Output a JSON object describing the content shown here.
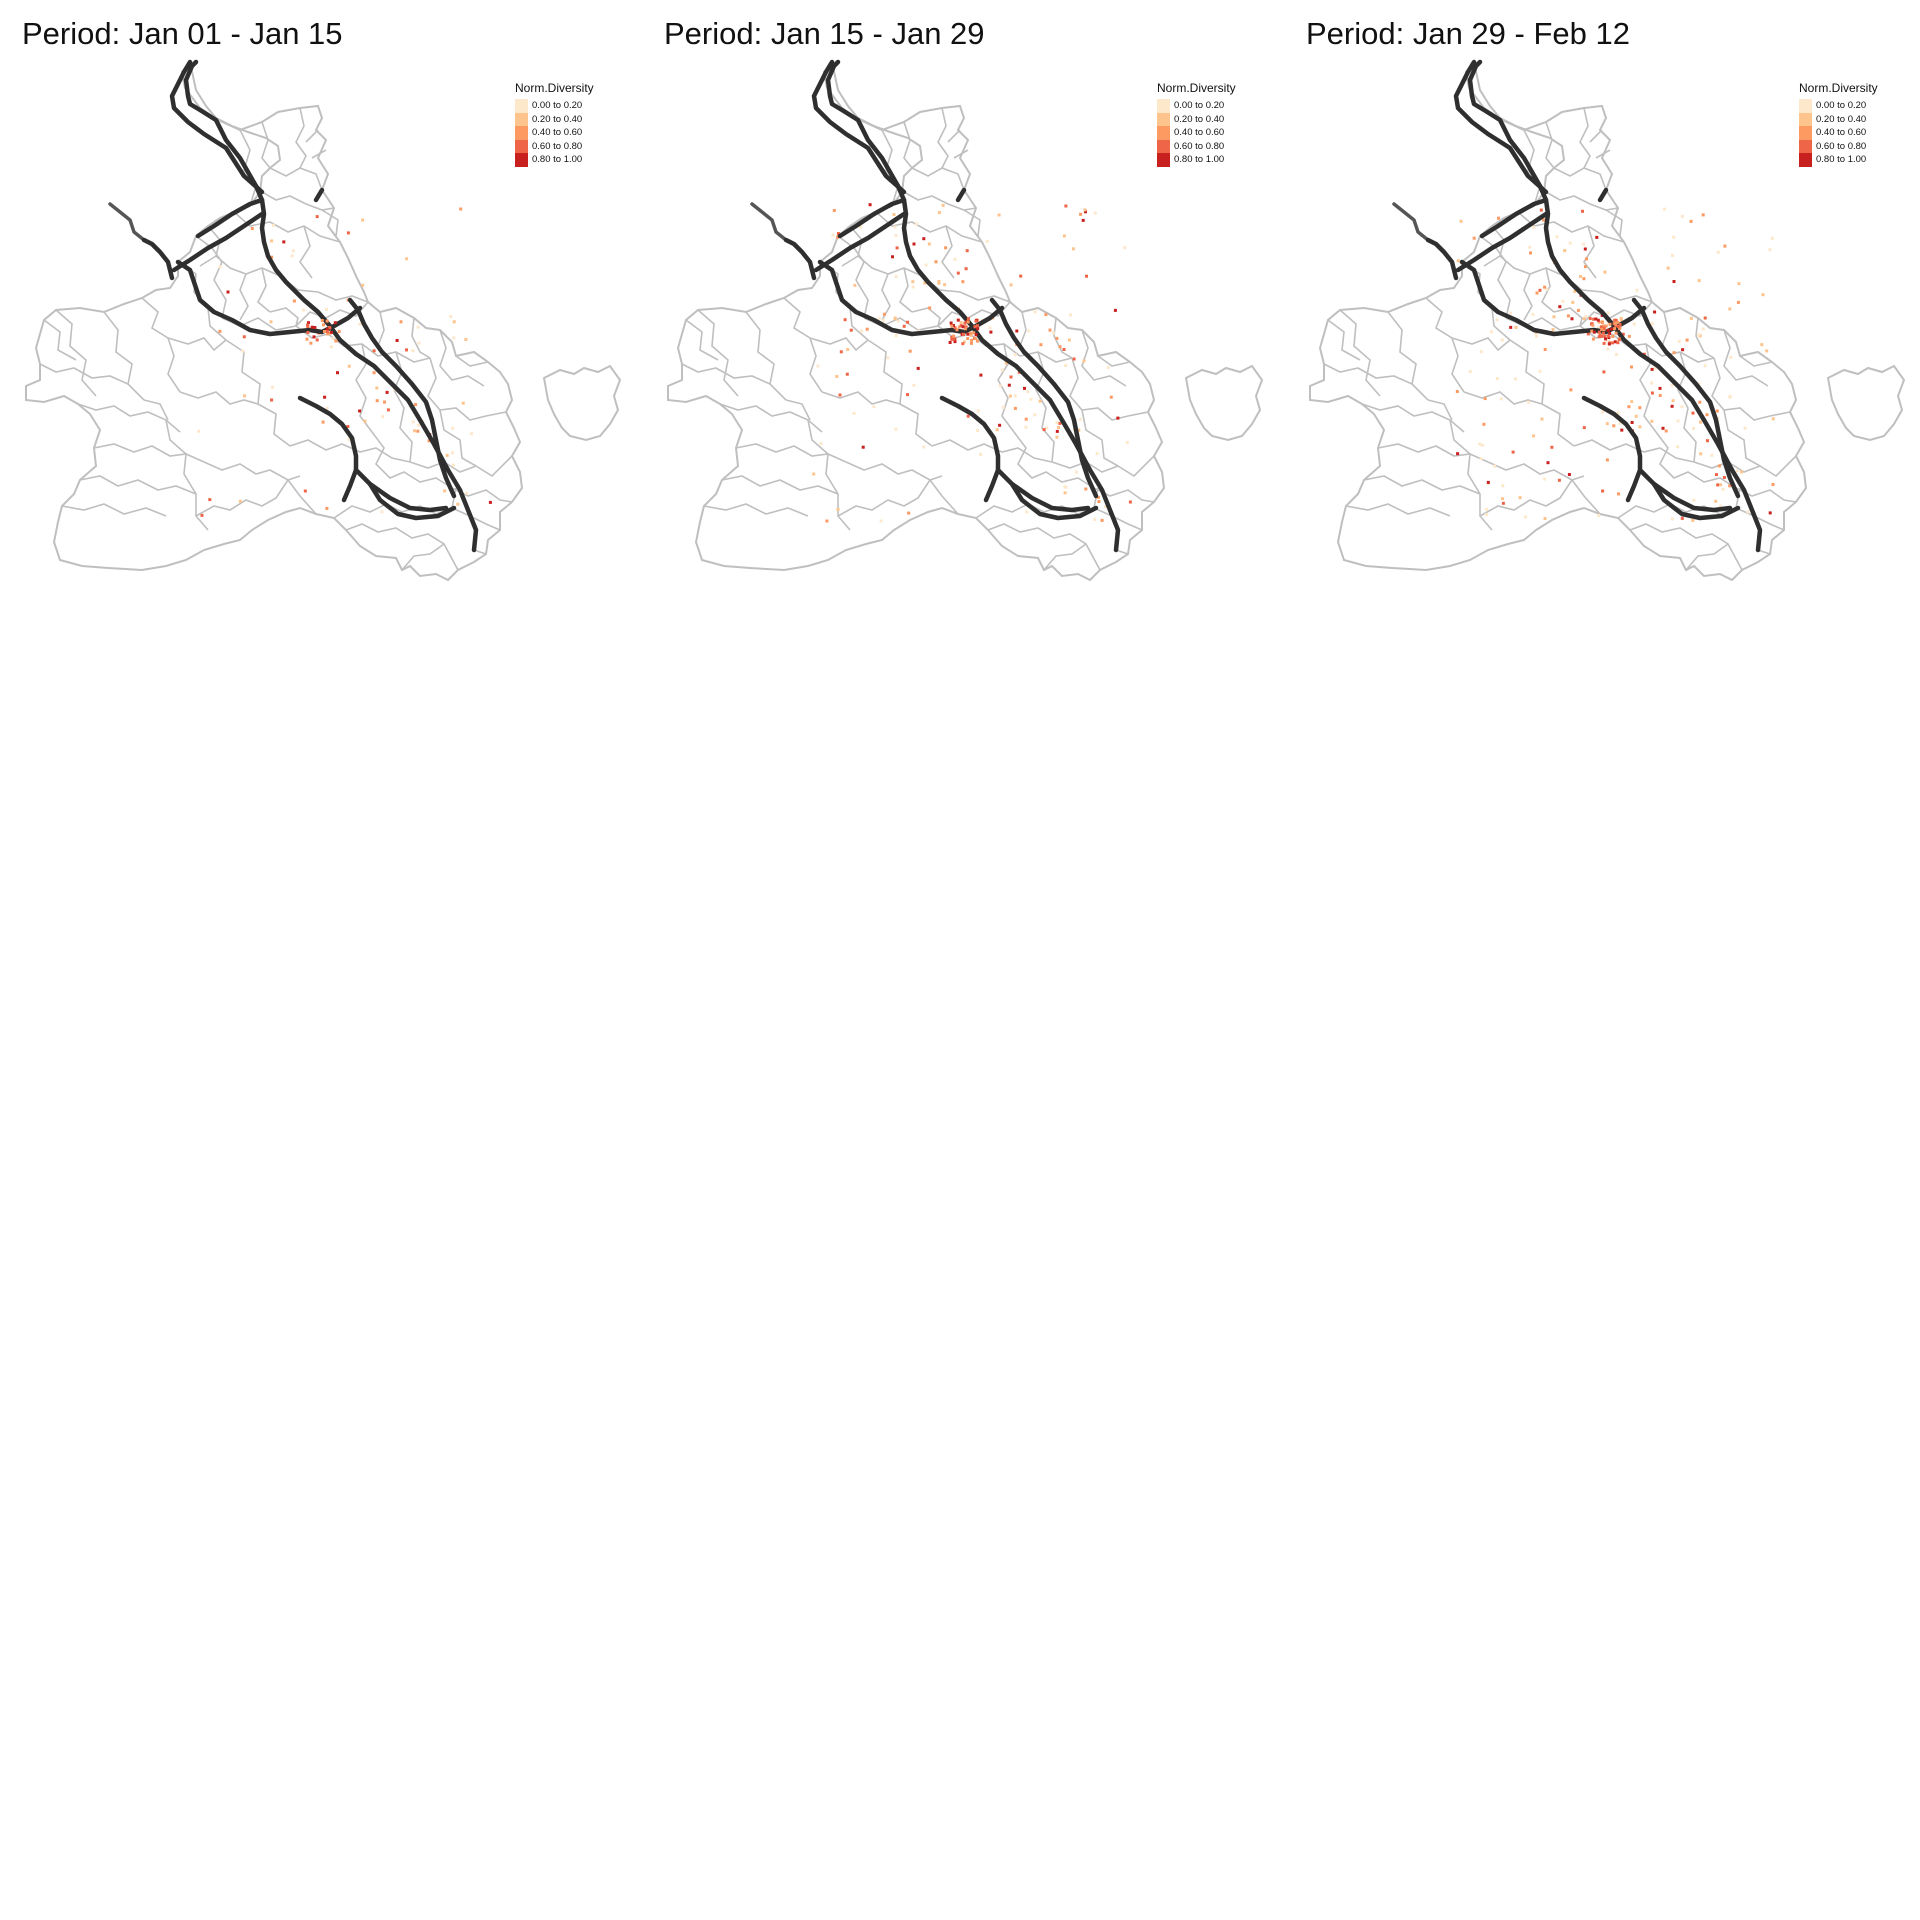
{
  "panels": [
    {
      "title": "Period: Jan 01 - Jan 15",
      "seed": 11,
      "points": 90
    },
    {
      "title": "Period: Jan 15 - Jan 29",
      "seed": 23,
      "points": 170
    },
    {
      "title": "Period: Jan 29 - Feb 12",
      "seed": 37,
      "points": 210
    }
  ],
  "legend": {
    "title": "Norm.Diversity",
    "classes": [
      {
        "label": "0.00 to 0.20",
        "color": "#fee8cc"
      },
      {
        "label": "0.20 to 0.40",
        "color": "#fdc48e"
      },
      {
        "label": "0.40 to 0.60",
        "color": "#fc9a62"
      },
      {
        "label": "0.60 to 0.80",
        "color": "#ef6547"
      },
      {
        "label": "0.80 to 1.00",
        "color": "#c8201f"
      }
    ]
  },
  "colors": {
    "boundary": "#bfbfbf",
    "roads": "#2f2f2f",
    "background": "#ffffff"
  }
}
